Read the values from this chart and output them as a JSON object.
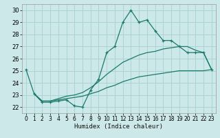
{
  "xlabel": "Humidex (Indice chaleur)",
  "background_color": "#cce8e8",
  "grid_color": "#aad4d4",
  "line_color": "#1a7a6a",
  "xlim": [
    -0.5,
    23.5
  ],
  "ylim": [
    21.5,
    30.5
  ],
  "xticks": [
    0,
    1,
    2,
    3,
    4,
    5,
    6,
    7,
    8,
    9,
    10,
    11,
    12,
    13,
    14,
    15,
    16,
    17,
    18,
    19,
    20,
    21,
    22,
    23
  ],
  "yticks": [
    22,
    23,
    24,
    25,
    26,
    27,
    28,
    29,
    30
  ],
  "series1_x": [
    0,
    1,
    2,
    3,
    4,
    5,
    6,
    7,
    8,
    9,
    10,
    11,
    12,
    13,
    14,
    15,
    16,
    17,
    18,
    19,
    20,
    21,
    22,
    23
  ],
  "series1_y": [
    25.1,
    23.1,
    22.4,
    22.4,
    22.5,
    22.6,
    22.1,
    22.0,
    23.4,
    24.3,
    26.5,
    27.0,
    29.0,
    30.0,
    29.0,
    29.2,
    28.3,
    27.5,
    27.5,
    27.0,
    26.5,
    26.5,
    26.5,
    25.1
  ],
  "series2_x": [
    1,
    2,
    3,
    4,
    5,
    6,
    7,
    8,
    9,
    10,
    11,
    12,
    13,
    14,
    15,
    16,
    17,
    18,
    19,
    20,
    21,
    22,
    23
  ],
  "series2_y": [
    23.1,
    22.5,
    22.5,
    22.7,
    22.9,
    23.0,
    23.2,
    23.6,
    24.1,
    24.7,
    25.2,
    25.7,
    26.0,
    26.3,
    26.5,
    26.6,
    26.8,
    26.9,
    27.0,
    27.0,
    26.7,
    26.5,
    25.1
  ],
  "series3_x": [
    1,
    2,
    3,
    4,
    5,
    6,
    7,
    8,
    9,
    10,
    11,
    12,
    13,
    14,
    15,
    16,
    17,
    18,
    19,
    20,
    21,
    22,
    23
  ],
  "series3_y": [
    23.1,
    22.5,
    22.5,
    22.6,
    22.7,
    22.8,
    22.9,
    23.1,
    23.3,
    23.6,
    23.8,
    24.1,
    24.3,
    24.5,
    24.6,
    24.7,
    24.8,
    24.9,
    25.0,
    25.0,
    25.0,
    25.0,
    25.1
  ]
}
